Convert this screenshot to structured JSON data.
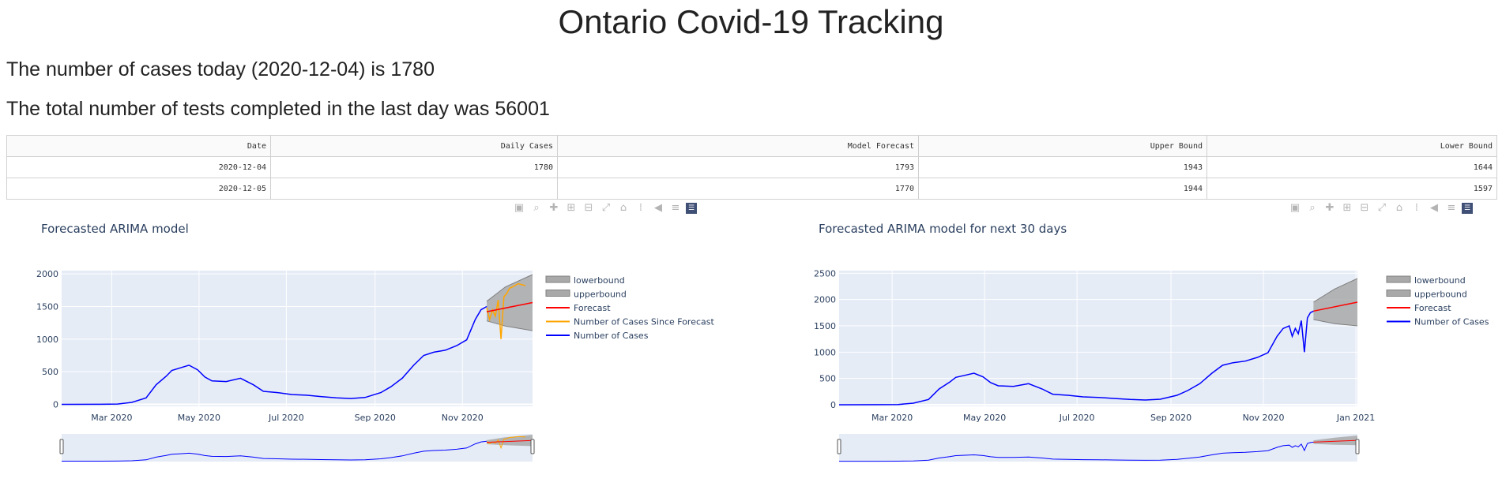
{
  "page": {
    "title": "Ontario Covid-19 Tracking",
    "cases_text": "The number of cases today (2020-12-04) is 1780",
    "tests_text": "The total number of tests completed in the last day was 56001"
  },
  "table": {
    "headers": [
      "Date",
      "Daily Cases",
      "Model Forecast",
      "Upper Bound",
      "Lower Bound"
    ],
    "rows": [
      [
        "2020-12-04",
        "1780",
        "1793",
        "1943",
        "1644"
      ],
      [
        "2020-12-05",
        "",
        "1770",
        "1944",
        "1597"
      ]
    ]
  },
  "modebar_icons": [
    "camera-icon",
    "zoom-icon",
    "pan-icon",
    "zoom-in-icon",
    "zoom-out-icon",
    "autoscale-icon",
    "reset-axes-icon",
    "spike-lines-icon",
    "hover-closest-icon",
    "hover-compare-icon",
    "plotly-logo-icon"
  ],
  "colors": {
    "plot_bg": "#e5ecf6",
    "cases": "#0000ff",
    "forecast": "#ff0000",
    "since_forecast": "#ffa500",
    "band_fill": "#a9a9a9",
    "band_line": "#808080"
  },
  "chart_data": [
    {
      "type": "line",
      "title": "Forecasted ARIMA model",
      "x_range": [
        "2020-01-26",
        "2020-12-20"
      ],
      "x_ticks": [
        {
          "date": "2020-03-01",
          "label": "Mar 2020"
        },
        {
          "date": "2020-05-01",
          "label": "May 2020"
        },
        {
          "date": "2020-07-01",
          "label": "Jul 2020"
        },
        {
          "date": "2020-09-01",
          "label": "Sep 2020"
        },
        {
          "date": "2020-11-01",
          "label": "Nov 2020"
        }
      ],
      "y_range": [
        -30,
        2050
      ],
      "y_ticks": [
        0,
        500,
        1000,
        1500,
        2000
      ],
      "legend": [
        "lowerbound",
        "upperbound",
        "Forecast",
        "Number of Cases Since Forecast",
        "Number of Cases"
      ],
      "series": {
        "cases_points": [
          [
            "2020-01-26",
            0
          ],
          [
            "2020-02-20",
            2
          ],
          [
            "2020-03-05",
            5
          ],
          [
            "2020-03-15",
            30
          ],
          [
            "2020-03-25",
            100
          ],
          [
            "2020-04-01",
            300
          ],
          [
            "2020-04-08",
            430
          ],
          [
            "2020-04-12",
            520
          ],
          [
            "2020-04-18",
            560
          ],
          [
            "2020-04-24",
            600
          ],
          [
            "2020-04-30",
            530
          ],
          [
            "2020-05-05",
            420
          ],
          [
            "2020-05-10",
            360
          ],
          [
            "2020-05-20",
            350
          ],
          [
            "2020-05-30",
            400
          ],
          [
            "2020-06-08",
            300
          ],
          [
            "2020-06-15",
            200
          ],
          [
            "2020-06-25",
            180
          ],
          [
            "2020-07-05",
            150
          ],
          [
            "2020-07-15",
            140
          ],
          [
            "2020-07-25",
            120
          ],
          [
            "2020-08-05",
            100
          ],
          [
            "2020-08-15",
            90
          ],
          [
            "2020-08-25",
            105
          ],
          [
            "2020-09-05",
            180
          ],
          [
            "2020-09-12",
            270
          ],
          [
            "2020-09-20",
            400
          ],
          [
            "2020-09-28",
            600
          ],
          [
            "2020-10-05",
            750
          ],
          [
            "2020-10-12",
            800
          ],
          [
            "2020-10-20",
            830
          ],
          [
            "2020-10-28",
            900
          ],
          [
            "2020-11-04",
            990
          ],
          [
            "2020-11-10",
            1300
          ],
          [
            "2020-11-14",
            1450
          ],
          [
            "2020-11-18",
            1500
          ]
        ],
        "since_forecast_points": [
          [
            "2020-11-18",
            1480
          ],
          [
            "2020-11-20",
            1300
          ],
          [
            "2020-11-22",
            1450
          ],
          [
            "2020-11-24",
            1350
          ],
          [
            "2020-11-26",
            1600
          ],
          [
            "2020-11-28",
            1000
          ],
          [
            "2020-11-30",
            1650
          ],
          [
            "2020-12-02",
            1700
          ],
          [
            "2020-12-04",
            1780
          ],
          [
            "2020-12-06",
            1800
          ],
          [
            "2020-12-10",
            1850
          ],
          [
            "2020-12-15",
            1820
          ]
        ],
        "forecast_points": [
          [
            "2020-11-18",
            1420
          ],
          [
            "2020-12-20",
            1560
          ]
        ],
        "upper_points": [
          [
            "2020-11-18",
            1580
          ],
          [
            "2020-12-01",
            1800
          ],
          [
            "2020-12-20",
            1990
          ]
        ],
        "lower_points": [
          [
            "2020-11-18",
            1280
          ],
          [
            "2020-12-01",
            1200
          ],
          [
            "2020-12-20",
            1130
          ]
        ]
      }
    },
    {
      "type": "line",
      "title": "Forecasted ARIMA model for next 30 days",
      "x_range": [
        "2020-01-26",
        "2021-01-02"
      ],
      "x_ticks": [
        {
          "date": "2020-03-01",
          "label": "Mar 2020"
        },
        {
          "date": "2020-05-01",
          "label": "May 2020"
        },
        {
          "date": "2020-07-01",
          "label": "Jul 2020"
        },
        {
          "date": "2020-09-01",
          "label": "Sep 2020"
        },
        {
          "date": "2020-11-01",
          "label": "Nov 2020"
        },
        {
          "date": "2021-01-01",
          "label": "Jan 2021"
        }
      ],
      "y_range": [
        -30,
        2550
      ],
      "y_ticks": [
        0,
        500,
        1000,
        1500,
        2000,
        2500
      ],
      "legend": [
        "lowerbound",
        "upperbound",
        "Forecast",
        "Number of Cases"
      ],
      "series": {
        "cases_points": [
          [
            "2020-01-26",
            0
          ],
          [
            "2020-02-20",
            2
          ],
          [
            "2020-03-05",
            5
          ],
          [
            "2020-03-15",
            30
          ],
          [
            "2020-03-25",
            100
          ],
          [
            "2020-04-01",
            300
          ],
          [
            "2020-04-08",
            430
          ],
          [
            "2020-04-12",
            520
          ],
          [
            "2020-04-18",
            560
          ],
          [
            "2020-04-24",
            600
          ],
          [
            "2020-04-30",
            530
          ],
          [
            "2020-05-05",
            420
          ],
          [
            "2020-05-10",
            360
          ],
          [
            "2020-05-20",
            350
          ],
          [
            "2020-05-30",
            400
          ],
          [
            "2020-06-08",
            300
          ],
          [
            "2020-06-15",
            200
          ],
          [
            "2020-06-25",
            180
          ],
          [
            "2020-07-05",
            150
          ],
          [
            "2020-07-15",
            140
          ],
          [
            "2020-07-25",
            120
          ],
          [
            "2020-08-05",
            100
          ],
          [
            "2020-08-15",
            90
          ],
          [
            "2020-08-25",
            105
          ],
          [
            "2020-09-05",
            180
          ],
          [
            "2020-09-12",
            270
          ],
          [
            "2020-09-20",
            400
          ],
          [
            "2020-09-28",
            600
          ],
          [
            "2020-10-05",
            750
          ],
          [
            "2020-10-12",
            800
          ],
          [
            "2020-10-20",
            830
          ],
          [
            "2020-10-28",
            900
          ],
          [
            "2020-11-04",
            990
          ],
          [
            "2020-11-10",
            1300
          ],
          [
            "2020-11-14",
            1450
          ],
          [
            "2020-11-18",
            1500
          ],
          [
            "2020-11-20",
            1300
          ],
          [
            "2020-11-22",
            1450
          ],
          [
            "2020-11-24",
            1350
          ],
          [
            "2020-11-26",
            1600
          ],
          [
            "2020-11-28",
            1000
          ],
          [
            "2020-11-30",
            1650
          ],
          [
            "2020-12-02",
            1750
          ],
          [
            "2020-12-04",
            1780
          ]
        ],
        "forecast_points": [
          [
            "2020-12-04",
            1780
          ],
          [
            "2021-01-02",
            1950
          ]
        ],
        "upper_points": [
          [
            "2020-12-04",
            1950
          ],
          [
            "2020-12-18",
            2200
          ],
          [
            "2021-01-02",
            2400
          ]
        ],
        "lower_points": [
          [
            "2020-12-04",
            1620
          ],
          [
            "2020-12-18",
            1540
          ],
          [
            "2021-01-02",
            1500
          ]
        ]
      }
    }
  ]
}
